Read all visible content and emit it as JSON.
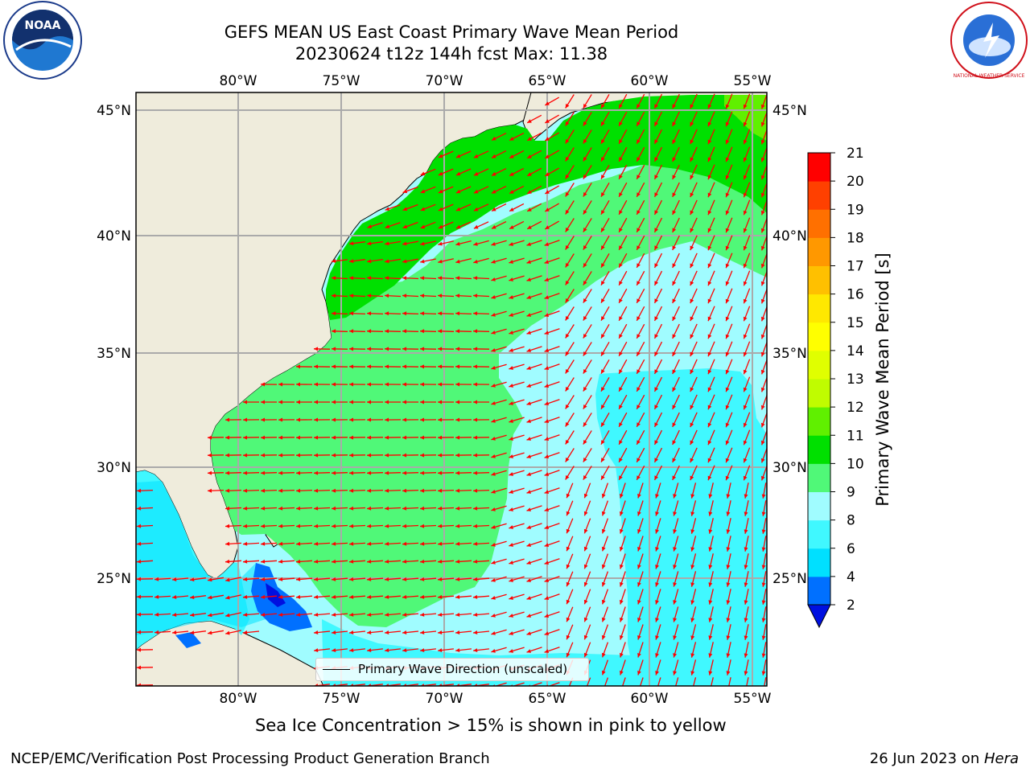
{
  "title": {
    "line1": "GEFS MEAN US East Coast Primary Wave Mean Period",
    "line2": "20230624 t12z 144h fcst   Max: 11.38"
  },
  "logos": {
    "left": "NOAA",
    "right": "NATIONAL WEATHER SERVICE"
  },
  "map": {
    "lon_labels": [
      "80°W",
      "75°W",
      "70°W",
      "65°W",
      "60°W",
      "55°W"
    ],
    "lat_labels": [
      "45°N",
      "40°N",
      "35°N",
      "30°N",
      "25°N"
    ],
    "legend": "Primary Wave Direction (unscaled)",
    "arrow_color": "#ff0000"
  },
  "colorbar": {
    "label": "Primary Wave Mean Period [s]",
    "ticks": [
      "2",
      "4",
      "6",
      "8",
      "9",
      "10",
      "11",
      "12",
      "13",
      "14",
      "15",
      "16",
      "17",
      "18",
      "19",
      "20",
      "21"
    ],
    "colors": [
      "#0070ff",
      "#00e0ff",
      "#40f8ff",
      "#a0fcff",
      "#50f878",
      "#00e000",
      "#60f000",
      "#c0fc00",
      "#e0ff00",
      "#ffff00",
      "#ffe800",
      "#ffc000",
      "#ff9800",
      "#ff7000",
      "#ff4000",
      "#ff0000"
    ],
    "under_color": "#0010e0"
  },
  "footer": {
    "note": "Sea Ice Concentration > 15% is shown in pink to yellow",
    "left": "NCEP/EMC/Verification Post Processing Product Generation Branch",
    "right_date": "26 Jun 2023 on ",
    "right_machine": "Hera"
  }
}
